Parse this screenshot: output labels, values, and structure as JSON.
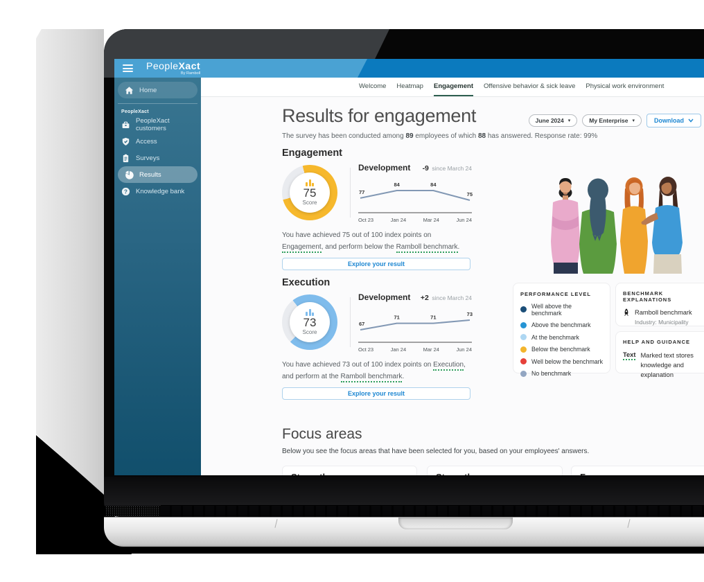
{
  "brand": {
    "people": "People",
    "xact": "Xact",
    "byline": "By Ramboll"
  },
  "sidebar": {
    "section_label": "PeopleXact",
    "items": [
      {
        "label": "Home"
      },
      {
        "label": "PeopleXact customers"
      },
      {
        "label": "Access"
      },
      {
        "label": "Surveys"
      },
      {
        "label": "Results"
      },
      {
        "label": "Knowledge bank"
      }
    ]
  },
  "tabs": [
    {
      "label": "Welcome"
    },
    {
      "label": "Heatmap"
    },
    {
      "label": "Engagement",
      "active": true
    },
    {
      "label": "Offensive behavior & sick leave"
    },
    {
      "label": "Physical work environment"
    }
  ],
  "header": {
    "title": "Results for engagement",
    "subtitle": {
      "p1": "The survey has been conducted among ",
      "n1": "89",
      "p2": " employees of which ",
      "n2": "88",
      "p3": " has answered. Response rate: 99%"
    }
  },
  "controls": {
    "period": "June 2024",
    "scope": "My Enterprise",
    "download": "Download"
  },
  "chart_data": [
    {
      "type": "donut",
      "section": "Engagement",
      "score": 75,
      "max": 100,
      "center_label": "Score",
      "color": "#f6b82c",
      "track_color": "#e9ebef",
      "gap_start_deg": 255
    },
    {
      "type": "line",
      "section": "Engagement",
      "title": "Development",
      "delta": "-9",
      "delta_note": "since March 24",
      "x": [
        "Oct 23",
        "Jan 24",
        "Mar 24",
        "Jun 24"
      ],
      "values": [
        77,
        84,
        84,
        75
      ],
      "line_color": "#8298b4"
    },
    {
      "type": "donut",
      "section": "Execution",
      "score": 73,
      "max": 100,
      "center_label": "Score",
      "color": "#7fbcec",
      "track_color": "#e9ebef",
      "gap_start_deg": 225
    },
    {
      "type": "line",
      "section": "Execution",
      "title": "Development",
      "delta": "+2",
      "delta_note": "since March 24",
      "x": [
        "Oct 23",
        "Jan 24",
        "Mar 24",
        "Jun 24"
      ],
      "values": [
        67,
        71,
        71,
        73
      ],
      "line_color": "#8298b4"
    }
  ],
  "sections": {
    "engagement": {
      "heading": "Engagement",
      "text": {
        "p1": "You have achieved 75 out of 100 index points on ",
        "u1": "Engagement",
        "p2": ", and perform below the ",
        "u2": "Ramboll benchmark",
        "p3": "."
      },
      "button": "Explore your result"
    },
    "execution": {
      "heading": "Execution",
      "text": {
        "p1": "You have achieved 73 out of 100 index points on ",
        "u1": "Execution",
        "p2": ", and perform at the ",
        "u2": "Ramboll benchmark",
        "p3": "."
      },
      "button": "Explore your result"
    }
  },
  "legend": {
    "title": "PERFORMANCE LEVEL",
    "items": [
      {
        "label": "Well above the benchmark",
        "color": "#1b4e78"
      },
      {
        "label": "Above the benchmark",
        "color": "#2694d4"
      },
      {
        "label": "At the benchmark",
        "color": "#aed7f2"
      },
      {
        "label": "Below the benchmark",
        "color": "#f3b52d"
      },
      {
        "label": "Well below the benchmark",
        "color": "#e6403a"
      },
      {
        "label": "No benchmark",
        "color": "#93a6c2"
      }
    ]
  },
  "benchmark_card": {
    "title": "BENCHMARK EXPLANATIONS",
    "name": "Ramboll benchmark",
    "industry": "Industry: Municipality"
  },
  "help_card": {
    "title": "HELP AND GUIDANCE",
    "keyword": "Text",
    "text": "Marked text stores knowledge and explanation"
  },
  "focus": {
    "title": "Focus areas",
    "subtitle": "Below you see the focus areas that have been selected for you, based on your employees' answers.",
    "cards": [
      {
        "title": "Strength"
      },
      {
        "title": "Strength"
      },
      {
        "title": "Focus area"
      }
    ]
  }
}
